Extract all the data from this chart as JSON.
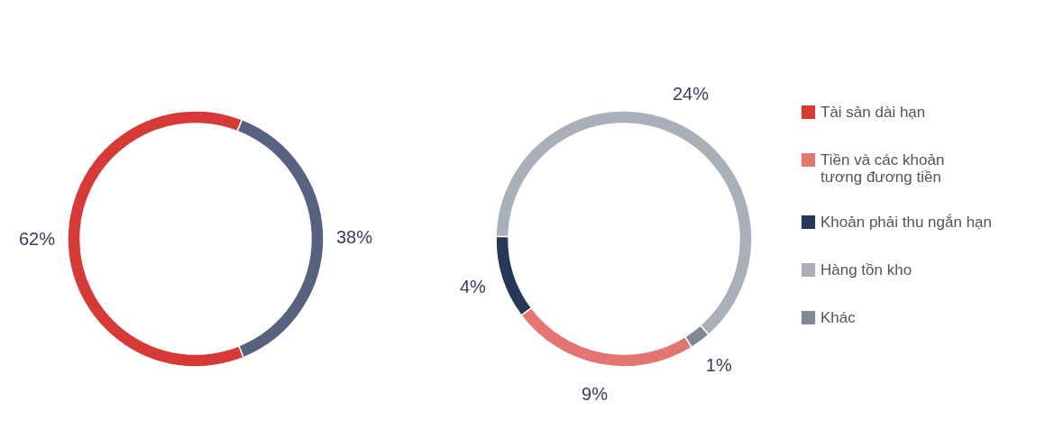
{
  "chart_data": [
    {
      "type": "donut",
      "categories": [
        "Tài sản dài hạn",
        null
      ],
      "values": [
        62,
        38
      ],
      "colors": [
        "#d63a36",
        "#56627f"
      ],
      "value_labels": [
        "62%",
        "38%"
      ],
      "legend": "right"
    },
    {
      "type": "donut",
      "categories": [
        "Tiền và các khoản tương đương tiền",
        "Khoản phải thu ngắn hạn",
        "Hàng tồn kho",
        "Khác"
      ],
      "values": [
        9,
        4,
        24,
        1
      ],
      "colors": [
        "#e37572",
        "#253858",
        "#a9b0b9",
        "#7f8a96"
      ],
      "value_labels": [
        "9%",
        "4%",
        "24%",
        "1%"
      ],
      "legend": "right"
    }
  ]
}
